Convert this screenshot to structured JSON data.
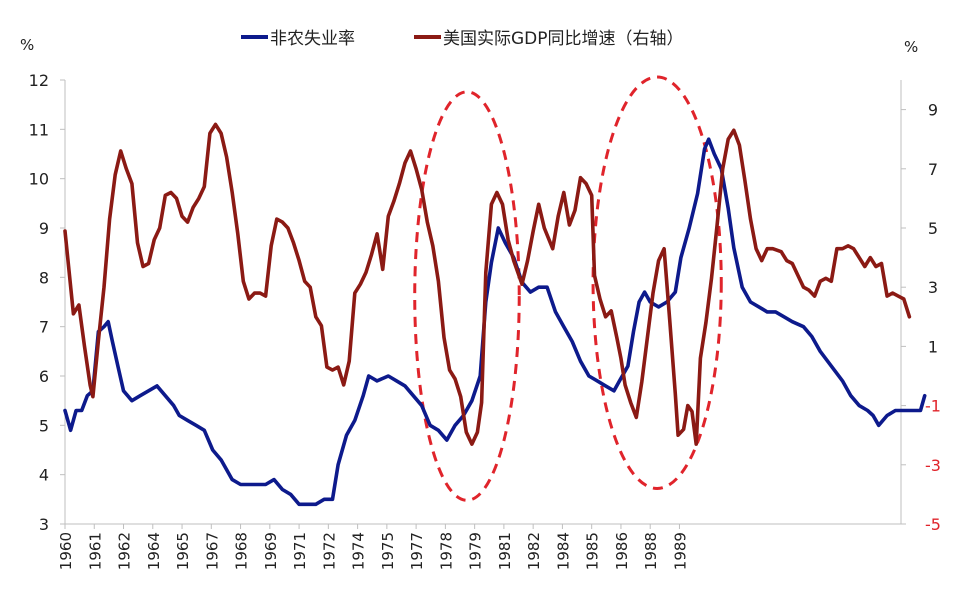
{
  "chart_data": {
    "type": "line",
    "legend_position": "top",
    "grid": false,
    "x_range": [
      1960,
      1990
    ],
    "y_left": {
      "unit_label": "%",
      "ylim": [
        3,
        12
      ],
      "ticks": [
        3,
        4,
        5,
        6,
        7,
        8,
        9,
        10,
        11,
        12
      ]
    },
    "y_right": {
      "unit_label": "%",
      "ylim": [
        -5,
        10
      ],
      "ticks": [
        -5,
        -3,
        -1,
        1,
        3,
        5,
        7,
        9
      ],
      "tick_colors": {
        "-5": "#e0242b",
        "-3": "#e0242b",
        "-1": "#e0242b"
      },
      "default_tick_color": "#222222"
    },
    "x_tick_labels": [
      {
        "label": "1960",
        "x": 1960.0
      },
      {
        "label": "1961",
        "x": 1961.05
      },
      {
        "label": "1962",
        "x": 1962.1
      },
      {
        "label": "1964",
        "x": 1963.15
      },
      {
        "label": "1965",
        "x": 1964.2
      },
      {
        "label": "1967",
        "x": 1965.25
      },
      {
        "label": "1968",
        "x": 1966.3
      },
      {
        "label": "1969",
        "x": 1967.35
      },
      {
        "label": "1971",
        "x": 1968.4
      },
      {
        "label": "1972",
        "x": 1969.45
      },
      {
        "label": "1974",
        "x": 1970.5
      },
      {
        "label": "1975",
        "x": 1971.55
      },
      {
        "label": "1977",
        "x": 1972.6
      },
      {
        "label": "1978",
        "x": 1973.65
      },
      {
        "label": "1979",
        "x": 1974.7
      },
      {
        "label": "1981",
        "x": 1975.75
      },
      {
        "label": "1982",
        "x": 1976.8
      },
      {
        "label": "1984",
        "x": 1977.85
      },
      {
        "label": "1985",
        "x": 1978.9
      },
      {
        "label": "1986",
        "x": 1979.95
      },
      {
        "label": "1988",
        "x": 1981.0
      },
      {
        "label": "1989",
        "x": 1982.05
      }
    ],
    "series": [
      {
        "name": "非农失业率",
        "axis": "left",
        "color": "#0d1a8c",
        "points": [
          [
            1960.0,
            5.3
          ],
          [
            1960.2,
            4.9
          ],
          [
            1960.4,
            5.3
          ],
          [
            1960.6,
            5.3
          ],
          [
            1960.8,
            5.6
          ],
          [
            1961.0,
            5.7
          ],
          [
            1961.2,
            6.9
          ],
          [
            1961.4,
            7.0
          ],
          [
            1961.55,
            7.1
          ],
          [
            1961.7,
            6.7
          ],
          [
            1961.9,
            6.2
          ],
          [
            1962.1,
            5.7
          ],
          [
            1962.4,
            5.5
          ],
          [
            1962.7,
            5.6
          ],
          [
            1963.0,
            5.7
          ],
          [
            1963.3,
            5.8
          ],
          [
            1963.6,
            5.6
          ],
          [
            1963.9,
            5.4
          ],
          [
            1964.1,
            5.2
          ],
          [
            1964.4,
            5.1
          ],
          [
            1964.7,
            5.0
          ],
          [
            1965.0,
            4.9
          ],
          [
            1965.3,
            4.5
          ],
          [
            1965.6,
            4.3
          ],
          [
            1966.0,
            3.9
          ],
          [
            1966.3,
            3.8
          ],
          [
            1966.6,
            3.8
          ],
          [
            1966.9,
            3.8
          ],
          [
            1967.2,
            3.8
          ],
          [
            1967.5,
            3.9
          ],
          [
            1967.8,
            3.7
          ],
          [
            1968.1,
            3.6
          ],
          [
            1968.4,
            3.4
          ],
          [
            1968.7,
            3.4
          ],
          [
            1969.0,
            3.4
          ],
          [
            1969.3,
            3.5
          ],
          [
            1969.6,
            3.5
          ],
          [
            1969.8,
            4.2
          ],
          [
            1970.1,
            4.8
          ],
          [
            1970.4,
            5.1
          ],
          [
            1970.7,
            5.6
          ],
          [
            1970.9,
            6.0
          ],
          [
            1971.2,
            5.9
          ],
          [
            1971.6,
            6.0
          ],
          [
            1971.9,
            5.9
          ],
          [
            1972.2,
            5.8
          ],
          [
            1972.5,
            5.6
          ],
          [
            1972.8,
            5.4
          ],
          [
            1973.1,
            5.0
          ],
          [
            1973.4,
            4.9
          ],
          [
            1973.7,
            4.7
          ],
          [
            1974.0,
            5.0
          ],
          [
            1974.3,
            5.2
          ],
          [
            1974.6,
            5.5
          ],
          [
            1974.9,
            6.0
          ],
          [
            1975.1,
            7.5
          ],
          [
            1975.3,
            8.3
          ],
          [
            1975.55,
            9.0
          ],
          [
            1975.8,
            8.7
          ],
          [
            1976.1,
            8.4
          ],
          [
            1976.4,
            7.9
          ],
          [
            1976.7,
            7.7
          ],
          [
            1977.0,
            7.8
          ],
          [
            1977.3,
            7.8
          ],
          [
            1977.6,
            7.3
          ],
          [
            1977.9,
            7.0
          ],
          [
            1978.2,
            6.7
          ],
          [
            1978.5,
            6.3
          ],
          [
            1978.8,
            6.0
          ],
          [
            1979.1,
            5.9
          ],
          [
            1979.4,
            5.8
          ],
          [
            1979.7,
            5.7
          ],
          [
            1979.9,
            5.9
          ],
          [
            1980.2,
            6.2
          ],
          [
            1980.4,
            6.9
          ],
          [
            1980.6,
            7.5
          ],
          [
            1980.8,
            7.7
          ],
          [
            1981.0,
            7.5
          ],
          [
            1981.3,
            7.4
          ],
          [
            1981.6,
            7.5
          ],
          [
            1981.9,
            7.7
          ],
          [
            1982.1,
            8.4
          ],
          [
            1982.4,
            9.0
          ],
          [
            1982.7,
            9.7
          ],
          [
            1982.95,
            10.6
          ],
          [
            1983.1,
            10.8
          ],
          [
            1983.3,
            10.5
          ],
          [
            1983.55,
            10.2
          ],
          [
            1983.8,
            9.4
          ],
          [
            1984.0,
            8.6
          ],
          [
            1984.3,
            7.8
          ],
          [
            1984.6,
            7.5
          ],
          [
            1984.9,
            7.4
          ],
          [
            1985.2,
            7.3
          ],
          [
            1985.5,
            7.3
          ],
          [
            1985.8,
            7.2
          ],
          [
            1986.1,
            7.1
          ],
          [
            1986.5,
            7.0
          ],
          [
            1986.8,
            6.8
          ],
          [
            1987.1,
            6.5
          ],
          [
            1987.5,
            6.2
          ],
          [
            1987.9,
            5.9
          ],
          [
            1988.2,
            5.6
          ],
          [
            1988.5,
            5.4
          ],
          [
            1988.8,
            5.3
          ],
          [
            1989.0,
            5.2
          ],
          [
            1989.2,
            5.0
          ],
          [
            1989.5,
            5.2
          ],
          [
            1989.8,
            5.3
          ],
          [
            1990.1,
            5.3
          ],
          [
            1990.4,
            5.3
          ],
          [
            1990.7,
            5.3
          ],
          [
            1990.85,
            5.6
          ]
        ]
      },
      {
        "name": "美国实际GDP同比增速（右轴）",
        "axis": "right",
        "color": "#8b1a14",
        "points": [
          [
            1960.0,
            4.9
          ],
          [
            1960.15,
            3.5
          ],
          [
            1960.3,
            2.1
          ],
          [
            1960.5,
            2.4
          ],
          [
            1960.7,
            1.0
          ],
          [
            1960.9,
            -0.3
          ],
          [
            1961.0,
            -0.7
          ],
          [
            1961.2,
            1.2
          ],
          [
            1961.4,
            3.0
          ],
          [
            1961.6,
            5.3
          ],
          [
            1961.8,
            6.8
          ],
          [
            1962.0,
            7.6
          ],
          [
            1962.2,
            7.0
          ],
          [
            1962.4,
            6.5
          ],
          [
            1962.6,
            4.5
          ],
          [
            1962.8,
            3.7
          ],
          [
            1963.0,
            3.8
          ],
          [
            1963.2,
            4.6
          ],
          [
            1963.4,
            5.0
          ],
          [
            1963.6,
            6.1
          ],
          [
            1963.8,
            6.2
          ],
          [
            1964.0,
            6.0
          ],
          [
            1964.2,
            5.4
          ],
          [
            1964.4,
            5.2
          ],
          [
            1964.6,
            5.7
          ],
          [
            1964.8,
            6.0
          ],
          [
            1965.0,
            6.4
          ],
          [
            1965.2,
            8.2
          ],
          [
            1965.4,
            8.5
          ],
          [
            1965.6,
            8.2
          ],
          [
            1965.8,
            7.4
          ],
          [
            1966.0,
            6.2
          ],
          [
            1966.2,
            4.8
          ],
          [
            1966.4,
            3.2
          ],
          [
            1966.6,
            2.6
          ],
          [
            1966.8,
            2.8
          ],
          [
            1967.0,
            2.8
          ],
          [
            1967.2,
            2.7
          ],
          [
            1967.4,
            4.4
          ],
          [
            1967.6,
            5.3
          ],
          [
            1967.8,
            5.2
          ],
          [
            1968.0,
            5.0
          ],
          [
            1968.2,
            4.5
          ],
          [
            1968.4,
            3.9
          ],
          [
            1968.6,
            3.2
          ],
          [
            1968.8,
            3.0
          ],
          [
            1969.0,
            2.0
          ],
          [
            1969.2,
            1.7
          ],
          [
            1969.4,
            0.3
          ],
          [
            1969.6,
            0.2
          ],
          [
            1969.8,
            0.3
          ],
          [
            1970.0,
            -0.3
          ],
          [
            1970.2,
            0.5
          ],
          [
            1970.4,
            2.8
          ],
          [
            1970.6,
            3.1
          ],
          [
            1970.8,
            3.5
          ],
          [
            1971.0,
            4.1
          ],
          [
            1971.2,
            4.8
          ],
          [
            1971.4,
            3.6
          ],
          [
            1971.6,
            5.4
          ],
          [
            1971.8,
            5.9
          ],
          [
            1972.0,
            6.5
          ],
          [
            1972.2,
            7.2
          ],
          [
            1972.4,
            7.6
          ],
          [
            1972.6,
            7.0
          ],
          [
            1972.8,
            6.3
          ],
          [
            1973.0,
            5.2
          ],
          [
            1973.2,
            4.4
          ],
          [
            1973.4,
            3.2
          ],
          [
            1973.6,
            1.3
          ],
          [
            1973.8,
            0.2
          ],
          [
            1974.0,
            -0.1
          ],
          [
            1974.2,
            -0.7
          ],
          [
            1974.4,
            -1.9
          ],
          [
            1974.6,
            -2.3
          ],
          [
            1974.8,
            -1.9
          ],
          [
            1974.95,
            -0.9
          ],
          [
            1975.1,
            3.5
          ],
          [
            1975.3,
            5.8
          ],
          [
            1975.5,
            6.2
          ],
          [
            1975.7,
            5.8
          ],
          [
            1975.9,
            4.6
          ],
          [
            1976.1,
            3.9
          ],
          [
            1976.4,
            3.1
          ],
          [
            1976.6,
            3.9
          ],
          [
            1976.8,
            4.9
          ],
          [
            1977.0,
            5.8
          ],
          [
            1977.2,
            5.0
          ],
          [
            1977.5,
            4.3
          ],
          [
            1977.7,
            5.4
          ],
          [
            1977.9,
            6.2
          ],
          [
            1978.1,
            5.1
          ],
          [
            1978.3,
            5.6
          ],
          [
            1978.5,
            6.7
          ],
          [
            1978.7,
            6.5
          ],
          [
            1978.9,
            6.1
          ],
          [
            1979.0,
            3.4
          ],
          [
            1979.2,
            2.6
          ],
          [
            1979.4,
            2.0
          ],
          [
            1979.6,
            2.2
          ],
          [
            1979.8,
            1.3
          ],
          [
            1979.95,
            0.6
          ],
          [
            1980.1,
            -0.3
          ],
          [
            1980.3,
            -0.9
          ],
          [
            1980.5,
            -1.4
          ],
          [
            1980.7,
            -0.2
          ],
          [
            1980.9,
            1.3
          ],
          [
            1981.1,
            2.8
          ],
          [
            1981.3,
            3.9
          ],
          [
            1981.5,
            4.3
          ],
          [
            1981.7,
            1.9
          ],
          [
            1981.9,
            -0.6
          ],
          [
            1982.0,
            -2.0
          ],
          [
            1982.2,
            -1.8
          ],
          [
            1982.35,
            -1.0
          ],
          [
            1982.5,
            -1.2
          ],
          [
            1982.65,
            -2.3
          ],
          [
            1982.8,
            0.6
          ],
          [
            1983.0,
            1.8
          ],
          [
            1983.2,
            3.3
          ],
          [
            1983.4,
            5.1
          ],
          [
            1983.6,
            7.0
          ],
          [
            1983.8,
            8.0
          ],
          [
            1984.0,
            8.3
          ],
          [
            1984.2,
            7.8
          ],
          [
            1984.4,
            6.6
          ],
          [
            1984.6,
            5.3
          ],
          [
            1984.8,
            4.3
          ],
          [
            1985.0,
            3.9
          ],
          [
            1985.2,
            4.3
          ],
          [
            1985.4,
            4.3
          ],
          [
            1985.7,
            4.2
          ],
          [
            1985.9,
            3.9
          ],
          [
            1986.1,
            3.8
          ],
          [
            1986.3,
            3.4
          ],
          [
            1986.5,
            3.0
          ],
          [
            1986.7,
            2.9
          ],
          [
            1986.9,
            2.7
          ],
          [
            1987.1,
            3.2
          ],
          [
            1987.3,
            3.3
          ],
          [
            1987.5,
            3.2
          ],
          [
            1987.7,
            4.3
          ],
          [
            1987.9,
            4.3
          ],
          [
            1988.1,
            4.4
          ],
          [
            1988.3,
            4.3
          ],
          [
            1988.5,
            4.0
          ],
          [
            1988.7,
            3.7
          ],
          [
            1988.9,
            4.0
          ],
          [
            1989.1,
            3.7
          ],
          [
            1989.3,
            3.8
          ],
          [
            1989.5,
            2.7
          ],
          [
            1989.7,
            2.8
          ],
          [
            1989.9,
            2.7
          ],
          [
            1990.1,
            2.6
          ],
          [
            1990.3,
            2.0
          ]
        ]
      }
    ],
    "highlight_ellipses": [
      {
        "x": [
          1972.55,
          1976.3
        ],
        "y_right": [
          -4.2,
          9.6
        ],
        "color": "#e0242b"
      },
      {
        "x": [
          1978.95,
          1983.55
        ],
        "y_right": [
          -3.8,
          10.1
        ],
        "color": "#e0242b"
      }
    ]
  }
}
